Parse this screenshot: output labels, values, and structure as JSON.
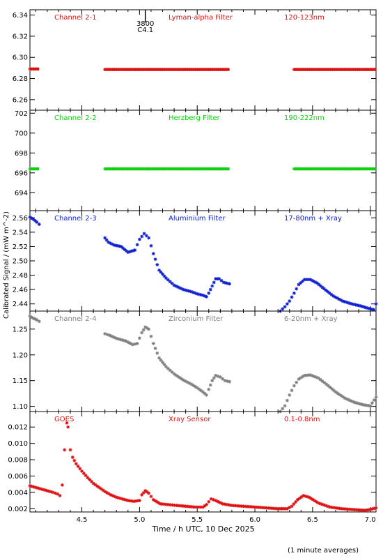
{
  "chart_data": {
    "type": "scatter",
    "x_axis": {
      "label": "Time / h UTC, 10 Dec 2025",
      "range": [
        4.05,
        7.05
      ],
      "ticks": [
        "4.5",
        "5.0",
        "5.5",
        "6.0",
        "6.5",
        "7.0"
      ]
    },
    "y_axis_label": "Calibrated Signal / (mW m^-2)",
    "footnote": "(1 minute averages)",
    "panels": [
      {
        "channel": "Channel 2-1",
        "filter": "Lyman-alpha Filter",
        "band": "120-123nm",
        "color": "#e01010",
        "ylim": [
          6.25,
          6.345
        ],
        "yticks": [
          "6.26",
          "6.28",
          "6.30",
          "6.32",
          "6.34"
        ],
        "annotation": {
          "line1": "3800",
          "line2": "C4.1",
          "x": 5.05
        },
        "segments": [
          {
            "start": 4.05,
            "end": 4.13,
            "value": 6.289
          },
          {
            "start": 4.7,
            "end": 5.78,
            "value": 6.2885
          },
          {
            "start": 6.34,
            "end": 7.05,
            "value": 6.2885
          }
        ]
      },
      {
        "channel": "Channel 2-2",
        "filter": "Herzberg Filter",
        "band": "190-222nm",
        "color": "#10d010",
        "ylim": [
          692.2,
          702.3
        ],
        "yticks": [
          "694",
          "696",
          "698",
          "700",
          "702"
        ],
        "segments": [
          {
            "start": 4.05,
            "end": 4.13,
            "value": 696.4
          },
          {
            "start": 4.7,
            "end": 5.78,
            "value": 696.4
          },
          {
            "start": 6.34,
            "end": 7.05,
            "value": 696.4
          }
        ]
      },
      {
        "channel": "Channel 2-3",
        "filter": "Aluminium Filter",
        "band": "17-80nm + Xray",
        "color": "#1020d0",
        "ylim": [
          2.43,
          2.57
        ],
        "yticks": [
          "2.44",
          "2.46",
          "2.48",
          "2.50",
          "2.52",
          "2.54",
          "2.56"
        ],
        "points": [
          [
            4.05,
            2.561
          ],
          [
            4.08,
            2.558
          ],
          [
            4.11,
            2.554
          ],
          [
            4.13,
            2.551
          ],
          [
            4.7,
            2.532
          ],
          [
            4.73,
            2.526
          ],
          [
            4.78,
            2.522
          ],
          [
            4.84,
            2.52
          ],
          [
            4.9,
            2.512
          ],
          [
            4.96,
            2.515
          ],
          [
            5.0,
            2.53
          ],
          [
            5.04,
            2.538
          ],
          [
            5.08,
            2.532
          ],
          [
            5.12,
            2.51
          ],
          [
            5.17,
            2.487
          ],
          [
            5.23,
            2.476
          ],
          [
            5.3,
            2.466
          ],
          [
            5.38,
            2.46
          ],
          [
            5.45,
            2.457
          ],
          [
            5.5,
            2.454
          ],
          [
            5.55,
            2.452
          ],
          [
            5.58,
            2.45
          ],
          [
            5.6,
            2.455
          ],
          [
            5.63,
            2.465
          ],
          [
            5.66,
            2.475
          ],
          [
            5.69,
            2.475
          ],
          [
            5.73,
            2.47
          ],
          [
            5.78,
            2.468
          ],
          [
            6.22,
            2.43
          ],
          [
            6.26,
            2.436
          ],
          [
            6.3,
            2.444
          ],
          [
            6.34,
            2.455
          ],
          [
            6.38,
            2.467
          ],
          [
            6.43,
            2.474
          ],
          [
            6.48,
            2.474
          ],
          [
            6.54,
            2.469
          ],
          [
            6.6,
            2.461
          ],
          [
            6.68,
            2.451
          ],
          [
            6.76,
            2.444
          ],
          [
            6.84,
            2.44
          ],
          [
            6.92,
            2.437
          ],
          [
            6.98,
            2.434
          ],
          [
            7.03,
            2.432
          ],
          [
            7.05,
            2.44
          ]
        ]
      },
      {
        "channel": "Channel 2-4",
        "filter": "Zirconium Filter",
        "band": "6-20nm + Xray",
        "color": "#808080",
        "ylim": [
          1.09,
          1.285
        ],
        "yticks": [
          "1.10",
          "1.15",
          "1.20",
          "1.25"
        ],
        "points": [
          [
            4.05,
            1.275
          ],
          [
            4.08,
            1.271
          ],
          [
            4.11,
            1.268
          ],
          [
            4.13,
            1.265
          ],
          [
            4.7,
            1.241
          ],
          [
            4.74,
            1.238
          ],
          [
            4.8,
            1.232
          ],
          [
            4.88,
            1.227
          ],
          [
            4.94,
            1.22
          ],
          [
            4.98,
            1.222
          ],
          [
            5.02,
            1.243
          ],
          [
            5.05,
            1.254
          ],
          [
            5.08,
            1.25
          ],
          [
            5.12,
            1.222
          ],
          [
            5.17,
            1.194
          ],
          [
            5.23,
            1.177
          ],
          [
            5.3,
            1.163
          ],
          [
            5.38,
            1.151
          ],
          [
            5.45,
            1.143
          ],
          [
            5.5,
            1.136
          ],
          [
            5.55,
            1.128
          ],
          [
            5.58,
            1.122
          ],
          [
            5.6,
            1.133
          ],
          [
            5.63,
            1.15
          ],
          [
            5.66,
            1.16
          ],
          [
            5.7,
            1.157
          ],
          [
            5.74,
            1.15
          ],
          [
            5.78,
            1.148
          ],
          [
            6.22,
            1.09
          ],
          [
            6.26,
            1.101
          ],
          [
            6.3,
            1.122
          ],
          [
            6.34,
            1.14
          ],
          [
            6.38,
            1.153
          ],
          [
            6.43,
            1.16
          ],
          [
            6.48,
            1.161
          ],
          [
            6.55,
            1.155
          ],
          [
            6.62,
            1.143
          ],
          [
            6.7,
            1.128
          ],
          [
            6.78,
            1.116
          ],
          [
            6.86,
            1.108
          ],
          [
            6.94,
            1.103
          ],
          [
            7.0,
            1.101
          ],
          [
            7.05,
            1.118
          ]
        ]
      },
      {
        "channel": "GOES",
        "filter": "Xray Sensor",
        "band": "0.1-0.8nm",
        "color": "#e01010",
        "ylim": [
          0.0016,
          0.0139
        ],
        "yticks": [
          "0.002",
          "0.004",
          "0.006",
          "0.008",
          "0.010",
          "0.012"
        ],
        "points": [
          [
            4.05,
            0.0048
          ],
          [
            4.1,
            0.0046
          ],
          [
            4.15,
            0.0044
          ],
          [
            4.2,
            0.0042
          ],
          [
            4.25,
            0.004
          ],
          [
            4.29,
            0.0038
          ],
          [
            4.31,
            0.0036
          ],
          [
            4.33,
            0.0049
          ],
          [
            4.35,
            0.0092
          ],
          [
            4.37,
            0.0125
          ],
          [
            4.38,
            0.012
          ],
          [
            4.4,
            0.0092
          ],
          [
            4.42,
            0.0083
          ],
          [
            4.45,
            0.0075
          ],
          [
            4.5,
            0.0066
          ],
          [
            4.55,
            0.0058
          ],
          [
            4.6,
            0.0051
          ],
          [
            4.65,
            0.0046
          ],
          [
            4.7,
            0.0041
          ],
          [
            4.75,
            0.0037
          ],
          [
            4.8,
            0.0034
          ],
          [
            4.85,
            0.0032
          ],
          [
            4.9,
            0.003
          ],
          [
            4.95,
            0.0029
          ],
          [
            5.0,
            0.003
          ],
          [
            5.02,
            0.0037
          ],
          [
            5.05,
            0.0042
          ],
          [
            5.08,
            0.0039
          ],
          [
            5.12,
            0.0031
          ],
          [
            5.18,
            0.0026
          ],
          [
            5.25,
            0.0025
          ],
          [
            5.32,
            0.0024
          ],
          [
            5.4,
            0.0023
          ],
          [
            5.48,
            0.0022
          ],
          [
            5.55,
            0.0022
          ],
          [
            5.58,
            0.0025
          ],
          [
            5.62,
            0.0032
          ],
          [
            5.66,
            0.003
          ],
          [
            5.72,
            0.0026
          ],
          [
            5.8,
            0.0024
          ],
          [
            5.9,
            0.0023
          ],
          [
            6.0,
            0.0022
          ],
          [
            6.1,
            0.0021
          ],
          [
            6.2,
            0.002
          ],
          [
            6.28,
            0.002
          ],
          [
            6.32,
            0.0023
          ],
          [
            6.37,
            0.0031
          ],
          [
            6.42,
            0.0036
          ],
          [
            6.47,
            0.0034
          ],
          [
            6.55,
            0.0027
          ],
          [
            6.65,
            0.0022
          ],
          [
            6.75,
            0.002
          ],
          [
            6.85,
            0.0019
          ],
          [
            6.95,
            0.0018
          ],
          [
            7.0,
            0.0019
          ],
          [
            7.05,
            0.0021
          ]
        ]
      }
    ]
  }
}
